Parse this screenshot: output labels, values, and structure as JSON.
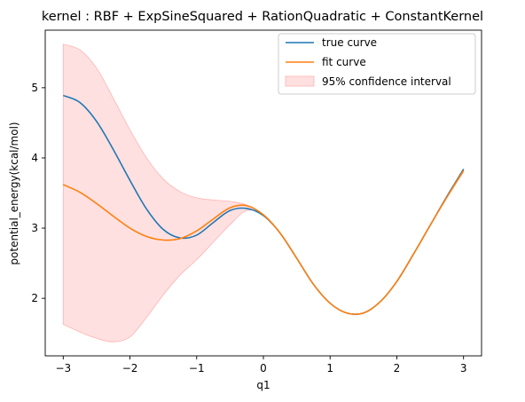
{
  "chart_data": {
    "type": "line",
    "title": "kernel : RBF + ExpSineSquared + RationQuadratic + ConstantKernel",
    "xlabel": "q1",
    "ylabel": "potential_energy(kcal/mol)",
    "xlim": [
      -3.27,
      3.27
    ],
    "ylim": [
      1.18,
      5.82
    ],
    "xticks": [
      -3,
      -2,
      -1,
      0,
      1,
      2,
      3
    ],
    "yticks": [
      2,
      3,
      4,
      5
    ],
    "grid": false,
    "legend_position": "top-right",
    "x": [
      -3.0,
      -2.75,
      -2.5,
      -2.25,
      -2.0,
      -1.75,
      -1.5,
      -1.25,
      -1.0,
      -0.75,
      -0.5,
      -0.25,
      0.0,
      0.25,
      0.5,
      0.75,
      1.0,
      1.25,
      1.5,
      1.75,
      2.0,
      2.25,
      2.5,
      2.75,
      3.0
    ],
    "series": [
      {
        "name": "true curve",
        "color": "#1f77b4",
        "values": [
          4.89,
          4.79,
          4.52,
          4.12,
          3.68,
          3.27,
          2.98,
          2.86,
          2.9,
          3.08,
          3.25,
          3.28,
          3.18,
          2.93,
          2.57,
          2.2,
          1.93,
          1.79,
          1.79,
          1.95,
          2.24,
          2.63,
          3.04,
          3.45,
          3.84
        ]
      },
      {
        "name": "fit curve",
        "color": "#ff7f0e",
        "values": [
          3.62,
          3.51,
          3.35,
          3.17,
          3.0,
          2.88,
          2.83,
          2.85,
          2.96,
          3.13,
          3.29,
          3.32,
          3.19,
          2.93,
          2.57,
          2.2,
          1.93,
          1.79,
          1.79,
          1.95,
          2.24,
          2.63,
          3.04,
          3.44,
          3.82
        ]
      },
      {
        "name": "95% confidence interval",
        "kind": "band",
        "color": "#ffcccc",
        "upper": [
          5.62,
          5.54,
          5.28,
          4.85,
          4.4,
          4.0,
          3.7,
          3.52,
          3.43,
          3.4,
          3.38,
          3.33,
          3.19,
          2.93,
          2.57,
          2.2,
          1.93,
          1.79,
          1.79,
          1.95,
          2.24,
          2.63,
          3.04,
          3.45,
          3.84
        ],
        "lower": [
          1.63,
          1.52,
          1.43,
          1.38,
          1.45,
          1.73,
          2.05,
          2.33,
          2.55,
          2.8,
          3.05,
          3.25,
          3.19,
          2.93,
          2.57,
          2.2,
          1.93,
          1.79,
          1.79,
          1.95,
          2.24,
          2.63,
          3.04,
          3.43,
          3.8
        ]
      }
    ]
  }
}
